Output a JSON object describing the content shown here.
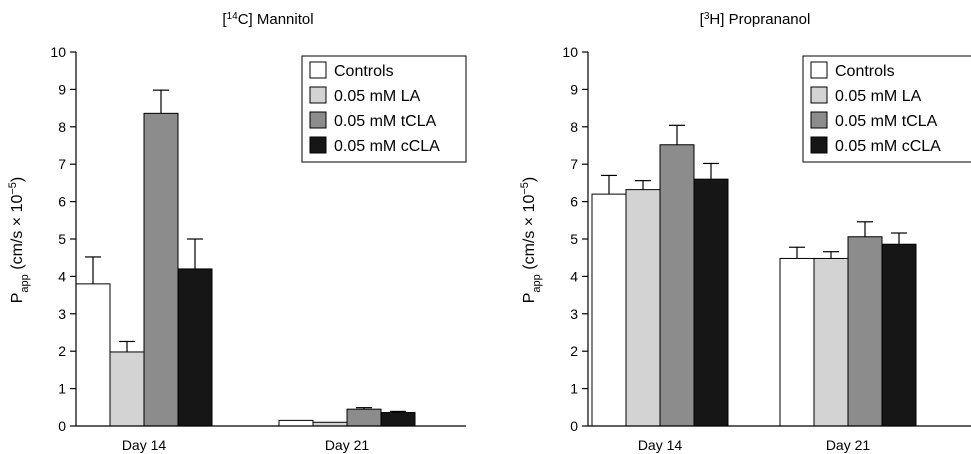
{
  "chart_data": [
    {
      "type": "bar",
      "title_pre": "[",
      "title_sup": "14",
      "title_post": "C] Mannitol",
      "ylabel_main": "P",
      "ylabel_sub": "app",
      "ylabel_mid": " (cm/s × 10",
      "ylabel_sup": "−5",
      "ylabel_end": ")",
      "ylim": [
        0,
        10
      ],
      "y_ticks": [
        "0",
        "1",
        "2",
        "3",
        "4",
        "5",
        "6",
        "7",
        "8",
        "9",
        "10"
      ],
      "categories": [
        "Day 14",
        "Day 21"
      ],
      "series": [
        {
          "name": "Controls",
          "color": "#ffffff",
          "values": [
            3.8,
            0.15
          ],
          "errors": [
            0.72,
            0.0
          ]
        },
        {
          "name": "0.05 mM LA",
          "color": "#d3d3d3",
          "values": [
            1.98,
            0.1
          ],
          "errors": [
            0.28,
            0.0
          ]
        },
        {
          "name": "0.05 mM tCLA",
          "color": "#8c8c8c",
          "values": [
            8.36,
            0.45
          ],
          "errors": [
            0.62,
            0.04
          ]
        },
        {
          "name": "0.05 mM cCLA",
          "color": "#161616",
          "values": [
            4.2,
            0.36
          ],
          "errors": [
            0.8,
            0.03
          ]
        }
      ],
      "grid": false,
      "legend_position": "top-right"
    },
    {
      "type": "bar",
      "title_pre": "[",
      "title_sup": "3",
      "title_post": "H] Proprananol",
      "ylabel_main": "P",
      "ylabel_sub": "app",
      "ylabel_mid": " (cm/s × 10",
      "ylabel_sup": "−5",
      "ylabel_end": ")",
      "ylim": [
        0,
        10
      ],
      "y_ticks": [
        "0",
        "1",
        "2",
        "3",
        "4",
        "5",
        "6",
        "7",
        "8",
        "9",
        "10"
      ],
      "categories": [
        "Day 14",
        "Day 21"
      ],
      "series": [
        {
          "name": "Controls",
          "color": "#ffffff",
          "values": [
            6.2,
            4.48
          ],
          "errors": [
            0.5,
            0.3
          ]
        },
        {
          "name": "0.05 mM LA",
          "color": "#d3d3d3",
          "values": [
            6.32,
            4.48
          ],
          "errors": [
            0.24,
            0.18
          ]
        },
        {
          "name": "0.05 mM tCLA",
          "color": "#8c8c8c",
          "values": [
            7.52,
            5.06
          ],
          "errors": [
            0.52,
            0.4
          ]
        },
        {
          "name": "0.05 mM cCLA",
          "color": "#161616",
          "values": [
            6.6,
            4.86
          ],
          "errors": [
            0.42,
            0.3
          ]
        }
      ],
      "grid": false,
      "legend_position": "top-right"
    }
  ]
}
